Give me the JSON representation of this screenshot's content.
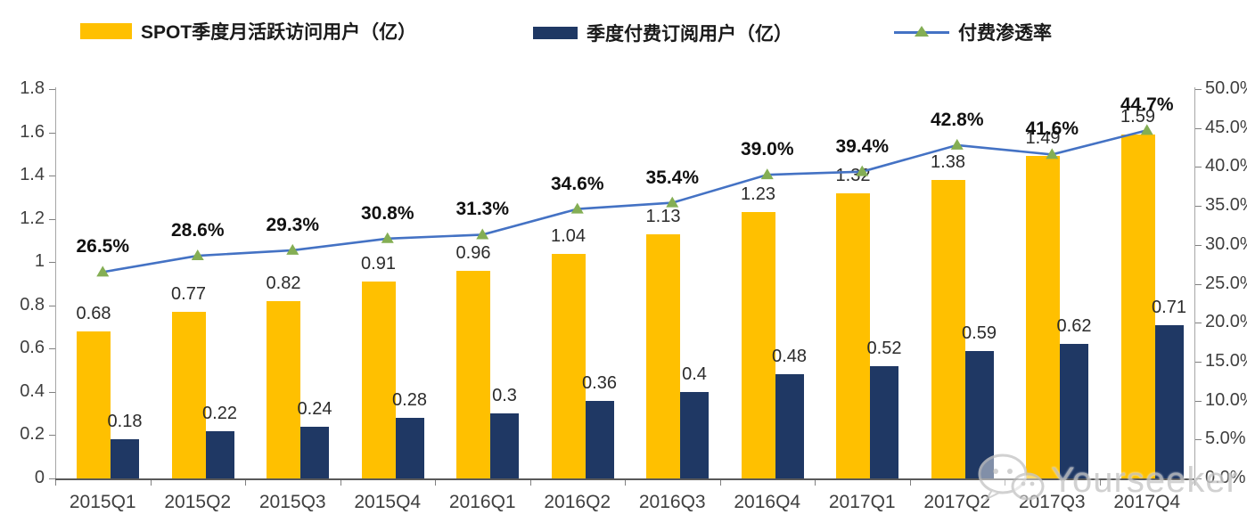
{
  "legend": {
    "items": [
      {
        "label": "SPOT季度月活跃访问用户（亿）",
        "swatch": "bar",
        "color": "#FFC000"
      },
      {
        "label": "季度付费订阅用户（亿）",
        "swatch": "bar",
        "color": "#1F3864"
      },
      {
        "label": "付费渗透率",
        "swatch": "line-marker",
        "line_color": "#4472C4",
        "marker_color": "#84AE54"
      }
    ]
  },
  "chart_data": {
    "type": "bar",
    "subtype": "combo-bar-line-dual-axis",
    "categories": [
      "2015Q1",
      "2015Q2",
      "2015Q3",
      "2015Q4",
      "2016Q1",
      "2016Q2",
      "2016Q3",
      "2016Q4",
      "2017Q1",
      "2017Q2",
      "2017Q3",
      "2017Q4"
    ],
    "series": [
      {
        "name": "SPOT季度月活跃访问用户（亿）",
        "kind": "bar",
        "axis": "left",
        "color": "#FFC000",
        "values": [
          0.68,
          0.77,
          0.82,
          0.91,
          0.96,
          1.04,
          1.13,
          1.23,
          1.32,
          1.38,
          1.49,
          1.59
        ],
        "labels": [
          "0.68",
          "0.77",
          "0.82",
          "0.91",
          "0.96",
          "1.04",
          "1.13",
          "1.23",
          "1.32",
          "1.38",
          "1.49",
          "1.59"
        ]
      },
      {
        "name": "季度付费订阅用户（亿）",
        "kind": "bar",
        "axis": "left",
        "color": "#1F3864",
        "values": [
          0.18,
          0.22,
          0.24,
          0.28,
          0.3,
          0.36,
          0.4,
          0.48,
          0.52,
          0.59,
          0.62,
          0.71
        ],
        "labels": [
          "0.18",
          "0.22",
          "0.24",
          "0.28",
          "0.3",
          "0.36",
          "0.4",
          "0.48",
          "0.52",
          "0.59",
          "0.62",
          "0.71"
        ]
      },
      {
        "name": "付费渗透率",
        "kind": "line",
        "axis": "right",
        "color": "#4472C4",
        "marker": "triangle",
        "marker_color": "#84AE54",
        "values": [
          26.5,
          28.6,
          29.3,
          30.8,
          31.3,
          34.6,
          35.4,
          39.0,
          39.4,
          42.8,
          41.6,
          44.7
        ],
        "labels": [
          "26.5%",
          "28.6%",
          "29.3%",
          "30.8%",
          "31.3%",
          "34.6%",
          "35.4%",
          "39.0%",
          "39.4%",
          "42.8%",
          "41.6%",
          "44.7%"
        ]
      }
    ],
    "left_axis": {
      "range": [
        0,
        1.8
      ],
      "ticks": [
        "1.8",
        "1.6",
        "1.4",
        "1.2",
        "1",
        "0.8",
        "0.6",
        "0.4",
        "0.2",
        "0"
      ]
    },
    "right_axis": {
      "range": [
        0,
        50
      ],
      "ticks": [
        "50.0%",
        "45.0%",
        "40.0%",
        "35.0%",
        "30.0%",
        "25.0%",
        "20.0%",
        "15.0%",
        "10.0%",
        "5.0%",
        "0.0%"
      ]
    },
    "grid": false,
    "legend_position": "top",
    "title": "",
    "xlabel": "",
    "ylabel": ""
  },
  "watermark": {
    "text": "Yourseeker",
    "icon": "wechat-icon"
  }
}
